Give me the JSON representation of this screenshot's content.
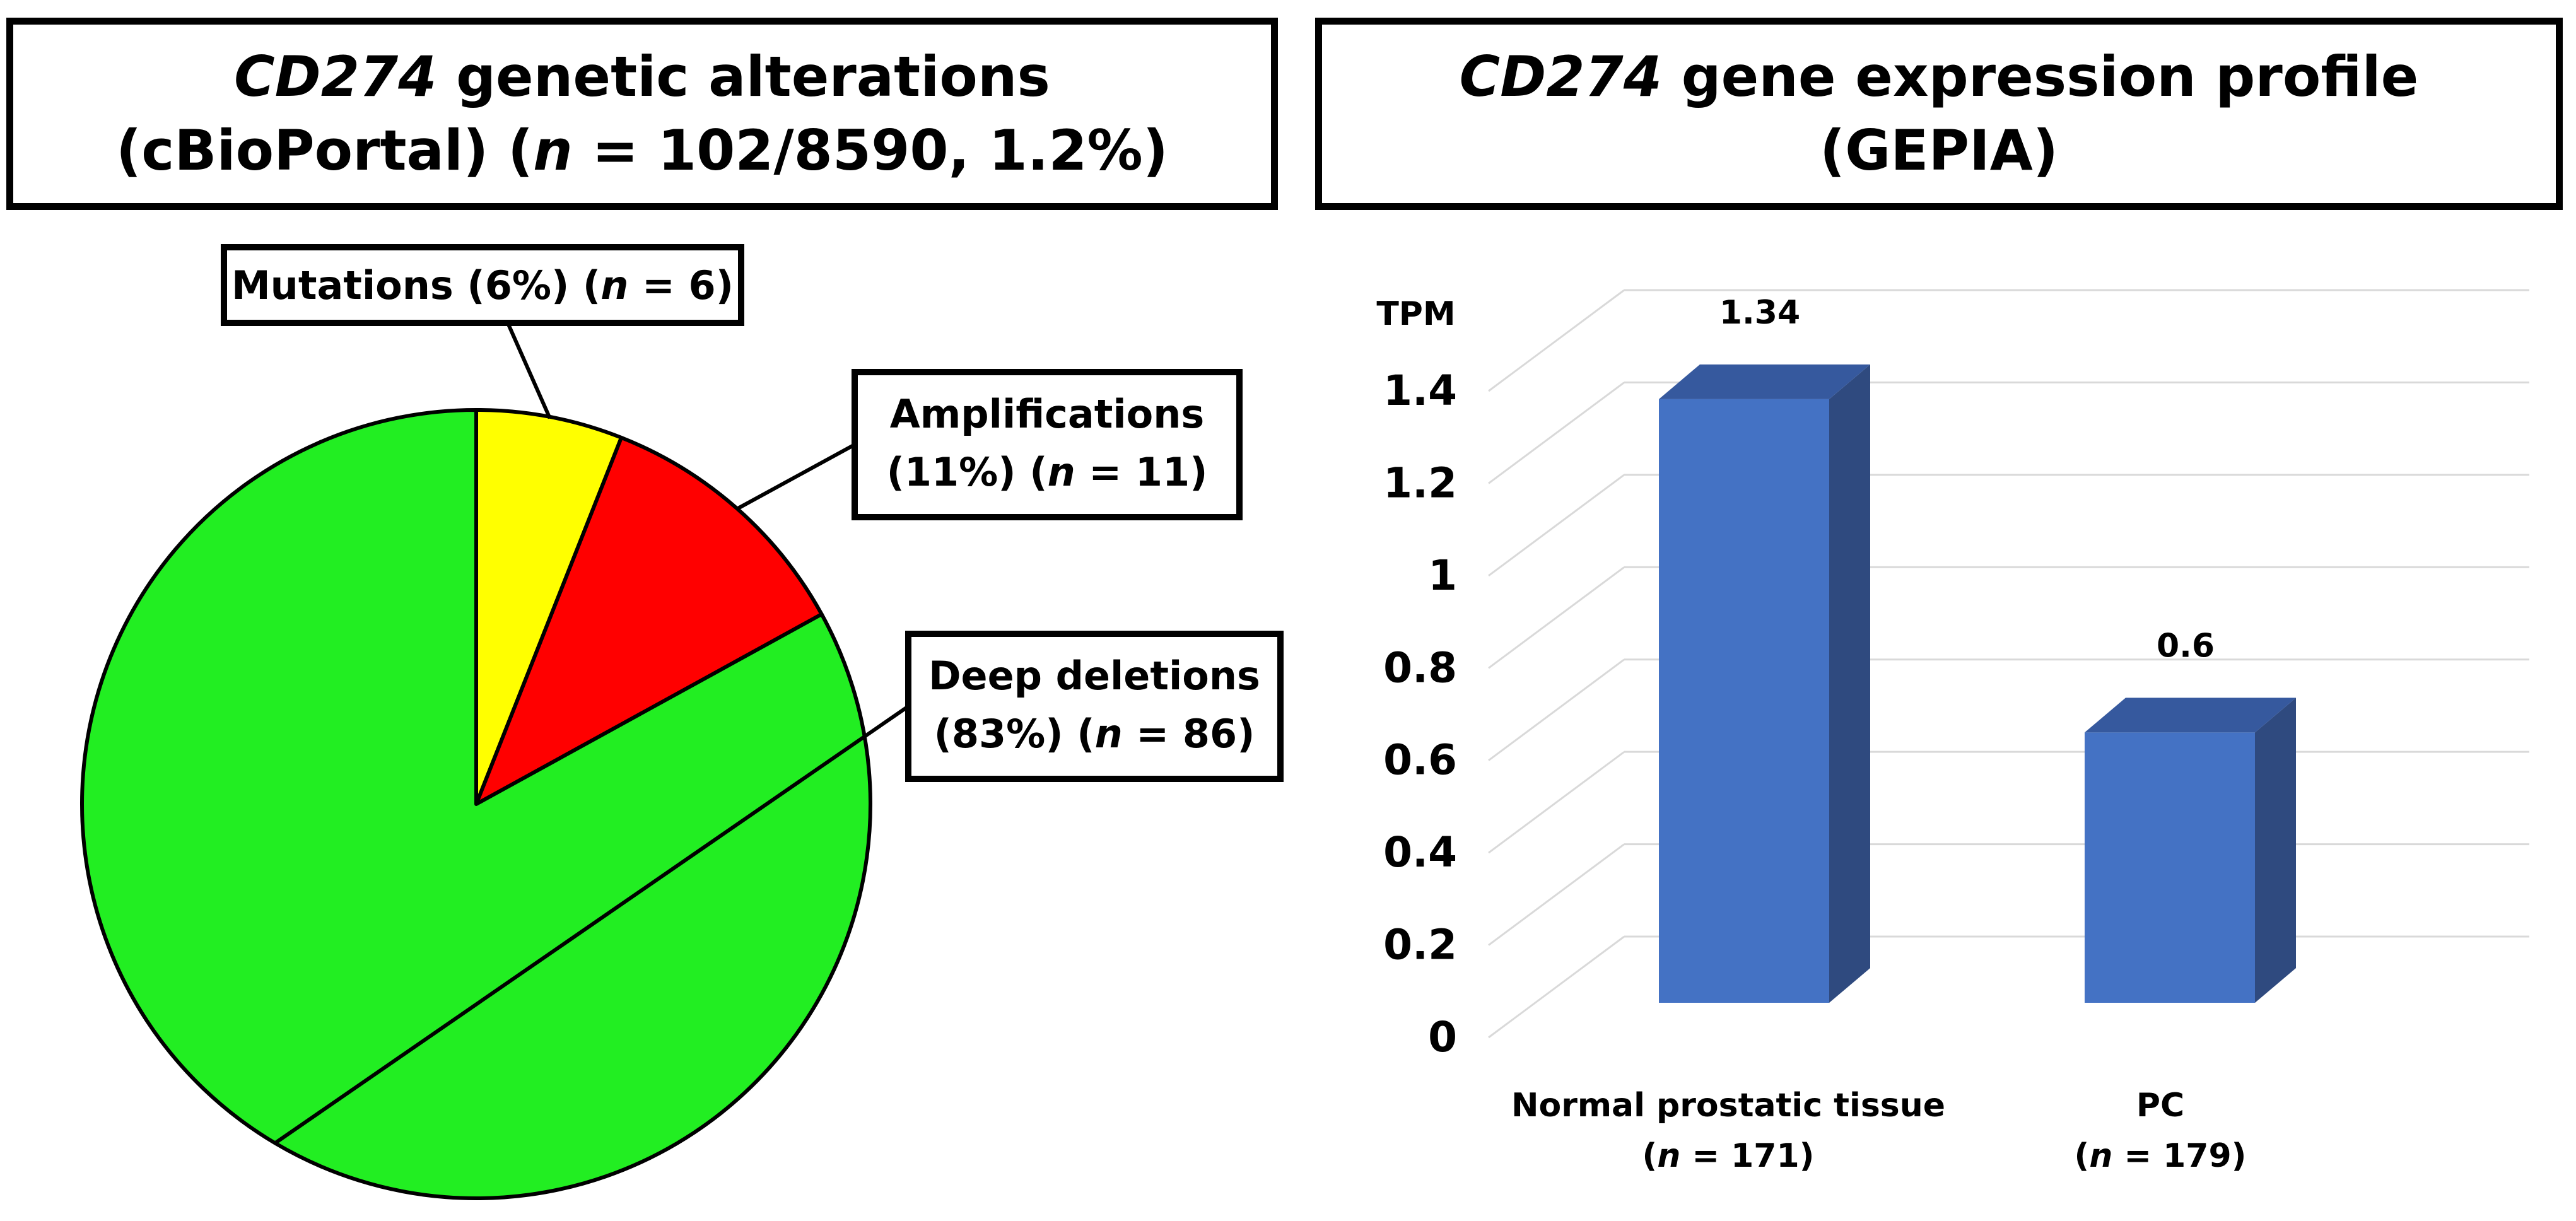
{
  "left_panel": {
    "title_gene": "CD274",
    "title_rest": " genetic alterations",
    "subtitle_a": "(cBioPortal) (",
    "subtitle_n": "n",
    "subtitle_b": " = 102/8590, 1.2%)"
  },
  "right_panel": {
    "title_gene": "CD274",
    "title_rest": " gene expression profile",
    "subtitle": "(GEPIA)"
  },
  "chart_data": [
    {
      "type": "pie",
      "title": "CD274 genetic alterations (cBioPortal) (n = 102/8590, 1.2%)",
      "slices": [
        {
          "label": "Mutations",
          "percent": 6,
          "n": 6,
          "color": "#ffff00",
          "text_a": "Mutations (6%) (",
          "text_b": " = 6)"
        },
        {
          "label": "Amplifications",
          "percent": 11,
          "n": 11,
          "color": "#ff0000",
          "text_line1": "Amplifications",
          "text_a": "(11%) (",
          "text_b": " = 11)"
        },
        {
          "label": "Deep deletions",
          "percent": 83,
          "n": 86,
          "color": "#22ee22",
          "text_line1": "Deep deletions",
          "text_a": "(83%) (",
          "text_b": " = 86)"
        }
      ],
      "n_italic": "n"
    },
    {
      "type": "bar",
      "title": "CD274 gene expression profile (GEPIA)",
      "ylabel": "TPM",
      "ylim": [
        0,
        1.4
      ],
      "yticks": [
        "0",
        "0.2",
        "0.4",
        "0.6",
        "0.8",
        "1",
        "1.2",
        "1.4"
      ],
      "grid": true,
      "categories": [
        {
          "name": "Normal prostatic tissue",
          "sub_a": "(",
          "sub_n": "n",
          "sub_b": " = 171)",
          "value": 1.34,
          "value_label": "1.34"
        },
        {
          "name": "PC",
          "sub_a": "(",
          "sub_n": "n",
          "sub_b": " = 179)",
          "value": 0.6,
          "value_label": "0.6"
        }
      ],
      "bar_color": "#4472c4",
      "bar_side_color": "#2f4a7f",
      "bar_top_color": "#36599e"
    }
  ]
}
